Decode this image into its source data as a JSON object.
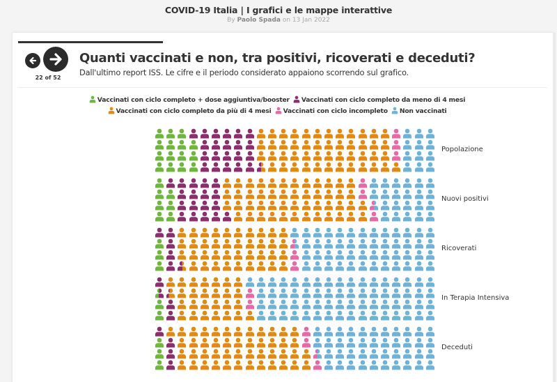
{
  "header": {
    "site_title": "COVID-19 Italia | I grafici e le mappe interattive",
    "byline_prefix": "By ",
    "author": "Paolo Spada",
    "byline_date": " on 13 Jan 2022"
  },
  "nav": {
    "prev_icon": "arrow-left-icon",
    "next_icon": "arrow-right-icon",
    "counter": "22 of 52"
  },
  "slide": {
    "title": "Quanti vaccinati e non, tra positivi, ricoverati e deceduti?",
    "subtitle": "Dall'ultimo report ISS. Le cifre e il periodo considerato appaiono scorrendo sul grafico."
  },
  "legend": {
    "items": [
      {
        "label": "Vaccinati con ciclo completo + dose aggiuntiva/booster",
        "color": "#6fb63f",
        "icon": "person-icon"
      },
      {
        "label": "Vaccinati con ciclo completo da meno di 4 mesi",
        "color": "#8a2f6c",
        "icon": "person-icon"
      },
      {
        "label": "Vaccinati con ciclo completo da più di 4 mesi",
        "color": "#e08a16",
        "icon": "person-icon"
      },
      {
        "label": "Vaccinati con ciclo incompleto",
        "color": "#e56aa6",
        "icon": "person-icon"
      },
      {
        "label": "Non vaccinati",
        "color": "#6fb2d8",
        "icon": "person-icon"
      }
    ]
  },
  "chart_data": {
    "type": "waffle",
    "title": "Quanti vaccinati e non, tra positivi, ricoverati e deceduti?",
    "subtitle": "Dall'ultimo report ISS. Le cifre e il periodo considerato appaiono scorrendo sul grafico.",
    "unit": "percent (100 person icons per group, 25 columns x 4 rows, filled column-wise bottom to top)",
    "grid": {
      "columns": 25,
      "rows": 4
    },
    "legend_position": "top",
    "series_names": [
      "Vaccinati con ciclo completo + dose aggiuntiva/booster",
      "Vaccinati con ciclo completo da meno di 4 mesi",
      "Vaccinati con ciclo completo da più di 4 mesi",
      "Vaccinati con ciclo incompleto",
      "Non vaccinati"
    ],
    "colors": [
      "#6fb63f",
      "#8a2f6c",
      "#e08a16",
      "#e56aa6",
      "#6fb2d8"
    ],
    "categories": [
      "Popolazione",
      "Nuovi positivi",
      "Ricoverati",
      "In Terapia Intensiva",
      "Deceduti"
    ],
    "series": [
      {
        "name": "Vaccinati con ciclo completo + dose aggiuntiva/booster",
        "values": [
          15,
          7,
          3,
          2.4,
          3
        ]
      },
      {
        "name": "Vaccinati con ciclo completo da meno di 4 mesi",
        "values": [
          21.5,
          18,
          5.6,
          3.9,
          4
        ]
      },
      {
        "name": "Vaccinati con ciclo completo da più di 4 mesi",
        "values": [
          48.5,
          49,
          39.4,
          26.7,
          47
        ]
      },
      {
        "name": "Vaccinati con ciclo incompleto",
        "values": [
          3,
          3.5,
          2.5,
          2,
          3.5
        ]
      },
      {
        "name": "Non vaccinati",
        "values": [
          12,
          22.5,
          49.5,
          65,
          42.5
        ]
      }
    ]
  }
}
